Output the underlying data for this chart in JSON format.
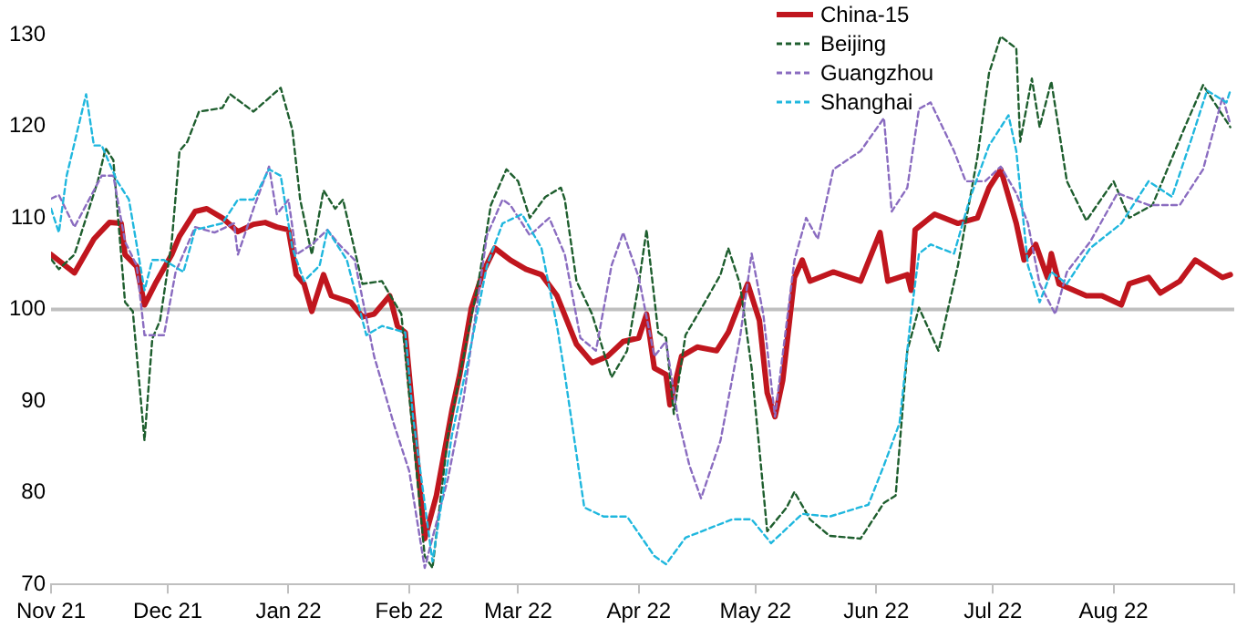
{
  "chart_data": {
    "type": "line",
    "legend": "top right",
    "marker": "none",
    "grid": false,
    "xlim": [
      "2021-11-01",
      "2022-09-01"
    ],
    "xticks": [
      {
        "value": "2021-11-01",
        "label": "Nov 21"
      },
      {
        "value": "2021-12-01",
        "label": "Dec 21"
      },
      {
        "value": "2022-01-01",
        "label": "Jan 22"
      },
      {
        "value": "2022-02-01",
        "label": "Feb 22"
      },
      {
        "value": "2022-03-01",
        "label": "Mar 22"
      },
      {
        "value": "2022-04-01",
        "label": "Apr 22"
      },
      {
        "value": "2022-05-01",
        "label": "May 22"
      },
      {
        "value": "2022-06-01",
        "label": "Jun 22"
      },
      {
        "value": "2022-07-01",
        "label": "Jul 22"
      },
      {
        "value": "2022-08-01",
        "label": "Aug 22"
      },
      {
        "value": "2022-09-01",
        "label": null
      }
    ],
    "ylim": [
      70,
      130
    ],
    "yticks": [
      70,
      80,
      90,
      100,
      110,
      120,
      130
    ],
    "ref_lines": [
      {
        "axis": "y",
        "value": 100,
        "color": "#bfbfbf"
      }
    ],
    "series": [
      {
        "name": "China-15",
        "color": "#c0161e",
        "line_style": "solid",
        "x": [
          "2021-11-01",
          "2021-11-07",
          "2021-11-12",
          "2021-11-16",
          "2021-11-19",
          "2021-11-20",
          "2021-11-23",
          "2021-11-25",
          "2021-11-28",
          "2021-12-02",
          "2021-12-04",
          "2021-12-08",
          "2021-12-11",
          "2021-12-15",
          "2021-12-19",
          "2021-12-23",
          "2021-12-26",
          "2021-12-29",
          "2022-01-01",
          "2022-01-03",
          "2022-01-05",
          "2022-01-07",
          "2022-01-10",
          "2022-01-12",
          "2022-01-17",
          "2022-01-20",
          "2022-01-23",
          "2022-01-27",
          "2022-01-29",
          "2022-01-31",
          "2022-02-05",
          "2022-02-08",
          "2022-02-12",
          "2022-02-14",
          "2022-02-17",
          "2022-02-20",
          "2022-02-23",
          "2022-02-27",
          "2022-03-03",
          "2022-03-07",
          "2022-03-11",
          "2022-03-16",
          "2022-03-20",
          "2022-03-24",
          "2022-03-28",
          "2022-04-01",
          "2022-04-03",
          "2022-04-05",
          "2022-04-08",
          "2022-04-09",
          "2022-04-12",
          "2022-04-16",
          "2022-04-21",
          "2022-04-24",
          "2022-04-27",
          "2022-04-29",
          "2022-05-02",
          "2022-05-04",
          "2022-05-06",
          "2022-05-08",
          "2022-05-11",
          "2022-05-13",
          "2022-05-15",
          "2022-05-21",
          "2022-05-28",
          "2022-06-02",
          "2022-06-04",
          "2022-06-09",
          "2022-06-10",
          "2022-06-11",
          "2022-06-16",
          "2022-06-22",
          "2022-06-27",
          "2022-06-30",
          "2022-07-03",
          "2022-07-07",
          "2022-07-09",
          "2022-07-12",
          "2022-07-15",
          "2022-07-16",
          "2022-07-18",
          "2022-07-25",
          "2022-07-29",
          "2022-08-03",
          "2022-08-05",
          "2022-08-10",
          "2022-08-13",
          "2022-08-18",
          "2022-08-22",
          "2022-08-29",
          "2022-08-31"
        ],
        "values": [
          106,
          104,
          107.7,
          109.5,
          109.4,
          106,
          104.7,
          100.5,
          103,
          106,
          108,
          110.7,
          111,
          110,
          108.5,
          109.3,
          109.5,
          109,
          108.7,
          103.8,
          102.8,
          99.8,
          103.8,
          101.5,
          100.8,
          99.2,
          99.5,
          101.5,
          98.2,
          97.5,
          75,
          79.7,
          89,
          92.9,
          100.2,
          104.1,
          106.7,
          105.4,
          104.4,
          103.8,
          101.5,
          96.2,
          94.2,
          94.9,
          96.5,
          96.9,
          99.5,
          93.6,
          92.9,
          89.6,
          94.9,
          95.9,
          95.5,
          97.5,
          100.8,
          102.8,
          98.8,
          90.9,
          88.3,
          92.3,
          103.5,
          105.4,
          103.1,
          104.1,
          103.1,
          108.4,
          103.1,
          103.8,
          102.1,
          108.7,
          110.4,
          109.4,
          110,
          113.3,
          115.3,
          109.4,
          105.4,
          107.1,
          103.5,
          106.1,
          102.8,
          101.5,
          101.5,
          100.5,
          102.8,
          103.5,
          101.8,
          103.1,
          105.4,
          103.5,
          103.8
        ]
      },
      {
        "name": "Beijing",
        "color": "#1e5e2e",
        "line_style": "dashed",
        "x": [
          "2021-11-01",
          "2021-11-03",
          "2021-11-07",
          "2021-11-13",
          "2021-11-15",
          "2021-11-17",
          "2021-11-20",
          "2021-11-22",
          "2021-11-25",
          "2021-11-27",
          "2021-11-29",
          "2021-12-02",
          "2021-12-04",
          "2021-12-06",
          "2021-12-09",
          "2021-12-15",
          "2021-12-17",
          "2021-12-23",
          "2021-12-30",
          "2022-01-02",
          "2022-01-04",
          "2022-01-07",
          "2022-01-10",
          "2022-01-13",
          "2022-01-15",
          "2022-01-20",
          "2022-01-25",
          "2022-01-30",
          "2022-02-05",
          "2022-02-07",
          "2022-02-11",
          "2022-02-15",
          "2022-02-19",
          "2022-02-22",
          "2022-02-26",
          "2022-03-01",
          "2022-03-04",
          "2022-03-08",
          "2022-03-12",
          "2022-03-13",
          "2022-03-16",
          "2022-03-20",
          "2022-03-25",
          "2022-03-29",
          "2022-04-01",
          "2022-04-03",
          "2022-04-06",
          "2022-04-08",
          "2022-04-10",
          "2022-04-13",
          "2022-04-18",
          "2022-04-22",
          "2022-04-24",
          "2022-04-27",
          "2022-04-30",
          "2022-05-04",
          "2022-05-09",
          "2022-05-11",
          "2022-05-15",
          "2022-05-20",
          "2022-05-28",
          "2022-06-03",
          "2022-06-06",
          "2022-06-09",
          "2022-06-12",
          "2022-06-17",
          "2022-06-22",
          "2022-06-27",
          "2022-06-30",
          "2022-07-03",
          "2022-07-07",
          "2022-07-08",
          "2022-07-11",
          "2022-07-13",
          "2022-07-16",
          "2022-07-20",
          "2022-07-25",
          "2022-08-01",
          "2022-08-05",
          "2022-08-11",
          "2022-08-19",
          "2022-08-24",
          "2022-08-29",
          "2022-08-31"
        ],
        "values": [
          105.5,
          104.4,
          106,
          114,
          117.6,
          116.3,
          100.8,
          99.8,
          85.7,
          96.8,
          98.8,
          107.4,
          117.3,
          118.3,
          121.6,
          122,
          123.5,
          121.6,
          124.2,
          119.6,
          112,
          106,
          113,
          111,
          112,
          102.8,
          103.1,
          99.5,
          73.1,
          71.8,
          86.3,
          94.9,
          103.5,
          111.4,
          115.3,
          114,
          110,
          112.3,
          113.3,
          112,
          103.1,
          99.5,
          92.6,
          95.5,
          102.8,
          108.7,
          97.5,
          96.9,
          88.6,
          97.2,
          100.8,
          103.8,
          106.7,
          102.8,
          93.6,
          75.8,
          78.4,
          80.1,
          77.1,
          75.3,
          75,
          78.9,
          79.7,
          95.5,
          100.2,
          95.5,
          104.8,
          116.6,
          125.8,
          129.8,
          128.5,
          118.3,
          125.2,
          119.9,
          124.9,
          114,
          109.7,
          114,
          110,
          111.4,
          119.6,
          124.5,
          121.2,
          119.9
        ]
      },
      {
        "name": "Guangzhou",
        "color": "#8a6cc0",
        "line_style": "dashed",
        "x": [
          "2021-11-01",
          "2021-11-03",
          "2021-11-07",
          "2021-11-14",
          "2021-11-17",
          "2021-11-20",
          "2021-11-23",
          "2021-11-25",
          "2021-11-30",
          "2021-12-03",
          "2021-12-08",
          "2021-12-13",
          "2021-12-18",
          "2021-12-19",
          "2021-12-23",
          "2021-12-27",
          "2021-12-29",
          "2022-01-01",
          "2022-01-03",
          "2022-01-07",
          "2022-01-11",
          "2022-01-14",
          "2022-01-18",
          "2022-01-23",
          "2022-01-28",
          "2022-02-01",
          "2022-02-05",
          "2022-02-11",
          "2022-02-15",
          "2022-02-21",
          "2022-02-25",
          "2022-02-27",
          "2022-03-04",
          "2022-03-09",
          "2022-03-13",
          "2022-03-17",
          "2022-03-21",
          "2022-03-25",
          "2022-03-28",
          "2022-04-01",
          "2022-04-05",
          "2022-04-08",
          "2022-04-11",
          "2022-04-14",
          "2022-04-17",
          "2022-04-22",
          "2022-04-27",
          "2022-04-30",
          "2022-05-03",
          "2022-05-06",
          "2022-05-11",
          "2022-05-14",
          "2022-05-17",
          "2022-05-21",
          "2022-05-28",
          "2022-06-03",
          "2022-06-05",
          "2022-06-09",
          "2022-06-12",
          "2022-06-15",
          "2022-06-21",
          "2022-06-24",
          "2022-06-29",
          "2022-07-03",
          "2022-07-07",
          "2022-07-10",
          "2022-07-13",
          "2022-07-17",
          "2022-07-20",
          "2022-07-26",
          "2022-08-02",
          "2022-08-10",
          "2022-08-18",
          "2022-08-24",
          "2022-08-29",
          "2022-08-31"
        ],
        "values": [
          112.1,
          112.5,
          109,
          114.6,
          114.6,
          107.4,
          104.8,
          97.2,
          97.2,
          104.1,
          109,
          108.4,
          109.4,
          106,
          111,
          115.6,
          110.4,
          112,
          106,
          107.1,
          108.7,
          107.1,
          105.4,
          94.9,
          87.6,
          82.4,
          71.8,
          81.6,
          90.3,
          108.1,
          112,
          111.4,
          108.1,
          110,
          106,
          96.9,
          95.5,
          104.8,
          108.4,
          103.5,
          94.9,
          96.5,
          88.3,
          83,
          79.4,
          85.7,
          96.9,
          106.1,
          99.5,
          88.3,
          105.4,
          110,
          107.7,
          115.3,
          117.3,
          120.9,
          110.7,
          113.3,
          121.9,
          122.6,
          117.3,
          114,
          114,
          115.6,
          112.7,
          109.4,
          102.8,
          99.5,
          104.1,
          107.4,
          112.7,
          111.4,
          111.4,
          115.3,
          123.2,
          120.2
        ]
      },
      {
        "name": "Shanghai",
        "color": "#1fb7de",
        "line_style": "dashed",
        "x": [
          "2021-11-01",
          "2021-11-03",
          "2021-11-05",
          "2021-11-10",
          "2021-11-12",
          "2021-11-14",
          "2021-11-18",
          "2021-11-21",
          "2021-11-25",
          "2021-11-27",
          "2021-11-30",
          "2021-12-05",
          "2021-12-08",
          "2021-12-15",
          "2021-12-19",
          "2021-12-23",
          "2021-12-27",
          "2021-12-30",
          "2022-01-02",
          "2022-01-05",
          "2022-01-09",
          "2022-01-11",
          "2022-01-16",
          "2022-01-21",
          "2022-01-25",
          "2022-01-31",
          "2022-02-02",
          "2022-02-07",
          "2022-02-12",
          "2022-02-16",
          "2022-02-21",
          "2022-02-25",
          "2022-03-02",
          "2022-03-07",
          "2022-03-11",
          "2022-03-13",
          "2022-03-18",
          "2022-03-23",
          "2022-03-29",
          "2022-04-05",
          "2022-04-08",
          "2022-04-13",
          "2022-04-19",
          "2022-04-25",
          "2022-04-30",
          "2022-05-05",
          "2022-05-13",
          "2022-05-20",
          "2022-05-30",
          "2022-06-03",
          "2022-06-07",
          "2022-06-10",
          "2022-06-12",
          "2022-06-15",
          "2022-06-21",
          "2022-06-25",
          "2022-06-30",
          "2022-07-05",
          "2022-07-07",
          "2022-07-10",
          "2022-07-13",
          "2022-07-16",
          "2022-07-20",
          "2022-07-26",
          "2022-08-03",
          "2022-08-10",
          "2022-08-16",
          "2022-08-21",
          "2022-08-25",
          "2022-08-30",
          "2022-08-31"
        ],
        "values": [
          111,
          108.4,
          114.6,
          123.5,
          117.9,
          117.9,
          114,
          112,
          102.1,
          105.4,
          105.4,
          104.1,
          108.7,
          109.4,
          112,
          112,
          115.3,
          114.6,
          106.7,
          103.1,
          104.8,
          108.7,
          105.4,
          97.2,
          98.2,
          97.5,
          88.3,
          72.5,
          86.3,
          94.2,
          104.8,
          109.4,
          110.4,
          106.7,
          98.2,
          92.9,
          78.4,
          77.4,
          77.4,
          73.1,
          72.2,
          75.1,
          76.1,
          77.1,
          77.1,
          74.5,
          77.7,
          77.4,
          78.7,
          83,
          87.6,
          99.5,
          106.1,
          107.1,
          106.1,
          112,
          117.9,
          121.2,
          117.3,
          104.8,
          100.8,
          104.1,
          102.8,
          106.7,
          109.4,
          114,
          112.3,
          118.6,
          123.9,
          122.6,
          123.9
        ]
      }
    ]
  }
}
